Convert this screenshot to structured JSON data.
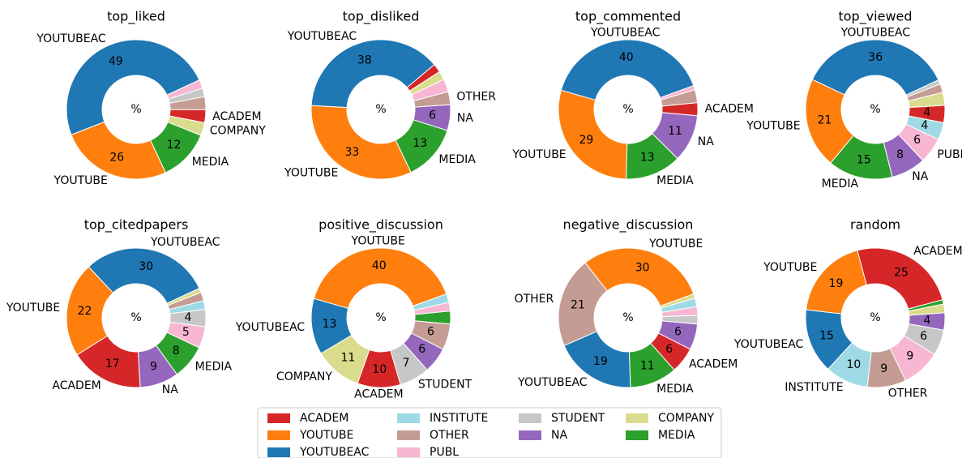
{
  "chart_data": [
    {
      "type": "pie",
      "title": "top_liked",
      "center_label": "%",
      "startangle": 25,
      "categories": [
        "YOUTUBEAC",
        "YOUTUBE",
        "MEDIA",
        "COMPANY",
        "ACADEM",
        "OTHER",
        "STUDENT",
        "PUBL"
      ],
      "values": [
        49,
        26,
        12,
        3,
        3,
        3,
        2,
        2
      ],
      "labels": [
        "YOUTUBEAC",
        "YOUTUBE",
        "MEDIA",
        "COMPANY",
        "ACADEM",
        null,
        null,
        null
      ],
      "value_labels": [
        "49",
        "26",
        "12",
        null,
        null,
        null,
        null,
        null
      ],
      "colors": [
        "#1f77b4",
        "#ff7f0e",
        "#2ca02c",
        "#dbdb8d",
        "#d62728",
        "#c49c94",
        "#c7c7c7",
        "#f7b6d2"
      ]
    },
    {
      "type": "pie",
      "title": "top_disliked",
      "center_label": "%",
      "startangle": 40,
      "categories": [
        "YOUTUBEAC",
        "YOUTUBE",
        "MEDIA",
        "NA",
        "OTHER",
        "PUBL",
        "COMPANY",
        "ACADEM"
      ],
      "values": [
        38,
        33,
        13,
        6,
        3,
        3,
        2,
        2
      ],
      "labels": [
        "YOUTUBEAC",
        "YOUTUBE",
        "MEDIA",
        "NA",
        "OTHER",
        null,
        null,
        null
      ],
      "value_labels": [
        "38",
        "33",
        "13",
        "6",
        null,
        null,
        null,
        null
      ],
      "colors": [
        "#1f77b4",
        "#ff7f0e",
        "#2ca02c",
        "#9467bd",
        "#c49c94",
        "#f7b6d2",
        "#dbdb8d",
        "#d62728"
      ]
    },
    {
      "type": "pie",
      "title": "top_commented",
      "center_label": "%",
      "startangle": 20,
      "categories": [
        "YOUTUBEAC",
        "YOUTUBE",
        "MEDIA",
        "NA",
        "ACADEM",
        "OTHER",
        "PUBL"
      ],
      "values": [
        40,
        29,
        13,
        11,
        3,
        3,
        1
      ],
      "labels": [
        "YOUTUBEAC",
        "YOUTUBE",
        "MEDIA",
        "NA",
        "ACADEM",
        null,
        null
      ],
      "value_labels": [
        "40",
        "29",
        "13",
        "11",
        null,
        null,
        null
      ],
      "colors": [
        "#1f77b4",
        "#ff7f0e",
        "#2ca02c",
        "#9467bd",
        "#d62728",
        "#c49c94",
        "#f7b6d2"
      ]
    },
    {
      "type": "pie",
      "title": "top_viewed",
      "center_label": "%",
      "startangle": 25,
      "categories": [
        "YOUTUBEAC",
        "YOUTUBE",
        "MEDIA",
        "NA",
        "PUBL",
        "INSTITUTE",
        "ACADEM",
        "COMPANY",
        "OTHER",
        "STUDENT"
      ],
      "values": [
        36,
        21,
        15,
        8,
        6,
        4,
        4,
        3,
        2,
        1
      ],
      "labels": [
        "YOUTUBEAC",
        "YOUTUBE",
        "MEDIA",
        "NA",
        "PUBL",
        null,
        null,
        null,
        null,
        null
      ],
      "value_labels": [
        "36",
        "21",
        "15",
        "8",
        "6",
        "4",
        "4",
        null,
        null,
        null
      ],
      "colors": [
        "#1f77b4",
        "#ff7f0e",
        "#2ca02c",
        "#9467bd",
        "#f7b6d2",
        "#9edae5",
        "#d62728",
        "#dbdb8d",
        "#c49c94",
        "#c7c7c7"
      ]
    },
    {
      "type": "pie",
      "title": "top_citedpapers",
      "center_label": "%",
      "startangle": 25,
      "categories": [
        "YOUTUBEAC",
        "YOUTUBE",
        "ACADEM",
        "NA",
        "MEDIA",
        "PUBL",
        "STUDENT",
        "INSTITUTE",
        "OTHER",
        "COMPANY"
      ],
      "values": [
        30,
        22,
        17,
        9,
        8,
        5,
        4,
        2,
        2,
        1
      ],
      "labels": [
        "YOUTUBEAC",
        "YOUTUBE",
        "ACADEM",
        "NA",
        "MEDIA",
        null,
        null,
        null,
        null,
        null
      ],
      "value_labels": [
        "30",
        "22",
        "17",
        "9",
        "8",
        "5",
        "4",
        null,
        null,
        null
      ],
      "colors": [
        "#1f77b4",
        "#ff7f0e",
        "#d62728",
        "#9467bd",
        "#2ca02c",
        "#f7b6d2",
        "#c7c7c7",
        "#9edae5",
        "#c49c94",
        "#dbdb8d"
      ]
    },
    {
      "type": "pie",
      "title": "positive_discussion",
      "center_label": "%",
      "startangle": 20,
      "categories": [
        "YOUTUBE",
        "YOUTUBEAC",
        "COMPANY",
        "ACADEM",
        "STUDENT",
        "NA",
        "OTHER",
        "MEDIA",
        "PUBL",
        "INSTITUTE"
      ],
      "values": [
        40,
        13,
        11,
        10,
        7,
        6,
        6,
        3,
        2,
        2
      ],
      "labels": [
        "YOUTUBE",
        "YOUTUBEAC",
        "COMPANY",
        "ACADEM",
        "STUDENT",
        null,
        null,
        null,
        null,
        null
      ],
      "value_labels": [
        "40",
        "13",
        "11",
        "10",
        "7",
        "6",
        "6",
        null,
        null,
        null
      ],
      "colors": [
        "#ff7f0e",
        "#1f77b4",
        "#dbdb8d",
        "#d62728",
        "#c7c7c7",
        "#9467bd",
        "#c49c94",
        "#2ca02c",
        "#f7b6d2",
        "#9edae5"
      ]
    },
    {
      "type": "pie",
      "title": "negative_discussion",
      "center_label": "%",
      "startangle": 20,
      "categories": [
        "YOUTUBE",
        "OTHER",
        "YOUTUBEAC",
        "MEDIA",
        "ACADEM",
        "NA",
        "STUDENT",
        "PUBL",
        "INSTITUTE",
        "COMPANY"
      ],
      "values": [
        30,
        21,
        19,
        11,
        6,
        6,
        2,
        2,
        2,
        1
      ],
      "labels": [
        "YOUTUBE",
        "OTHER",
        "YOUTUBEAC",
        "MEDIA",
        "ACADEM",
        null,
        null,
        null,
        null,
        null
      ],
      "value_labels": [
        "30",
        "21",
        "19",
        "11",
        "6",
        "6",
        null,
        null,
        null,
        null
      ],
      "colors": [
        "#ff7f0e",
        "#c49c94",
        "#1f77b4",
        "#2ca02c",
        "#d62728",
        "#9467bd",
        "#c7c7c7",
        "#f7b6d2",
        "#9edae5",
        "#dbdb8d"
      ]
    },
    {
      "type": "pie",
      "title": "random",
      "center_label": "%",
      "startangle": 15,
      "categories": [
        "ACADEM",
        "YOUTUBE",
        "YOUTUBEAC",
        "INSTITUTE",
        "OTHER",
        "PUBL",
        "STUDENT",
        "NA",
        "COMPANY",
        "MEDIA"
      ],
      "values": [
        25,
        19,
        15,
        10,
        9,
        9,
        6,
        4,
        2,
        1
      ],
      "labels": [
        "ACADEM",
        "YOUTUBE",
        "YOUTUBEAC",
        "INSTITUTE",
        "OTHER",
        null,
        null,
        null,
        null,
        null
      ],
      "value_labels": [
        "25",
        "19",
        "15",
        "10",
        "9",
        "9",
        "6",
        "4",
        null,
        null
      ],
      "colors": [
        "#d62728",
        "#ff7f0e",
        "#1f77b4",
        "#9edae5",
        "#c49c94",
        "#f7b6d2",
        "#c7c7c7",
        "#9467bd",
        "#dbdb8d",
        "#2ca02c"
      ]
    }
  ],
  "legend": {
    "labels": [
      "ACADEM",
      "YOUTUBE",
      "YOUTUBEAC",
      "INSTITUTE",
      "OTHER",
      "PUBL",
      "STUDENT",
      "NA",
      "COMPANY",
      "MEDIA"
    ],
    "colors": [
      "#d62728",
      "#ff7f0e",
      "#1f77b4",
      "#9edae5",
      "#c49c94",
      "#f7b6d2",
      "#c7c7c7",
      "#9467bd",
      "#dbdb8d",
      "#2ca02c"
    ],
    "rows": [
      3,
      3,
      2,
      2
    ]
  }
}
